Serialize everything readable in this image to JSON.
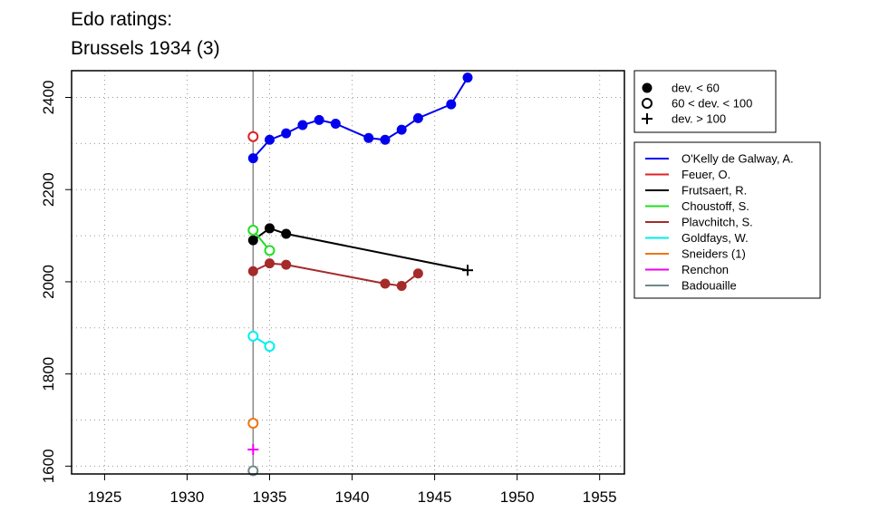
{
  "title": [
    "Edo ratings:",
    "Brussels 1934 (3)"
  ],
  "chart_data": {
    "type": "line",
    "xlim": [
      1923,
      1956.5
    ],
    "ylim": [
      1583,
      2458
    ],
    "xticks": [
      1925,
      1930,
      1935,
      1940,
      1945,
      1950,
      1955
    ],
    "yticks": [
      1600,
      1800,
      2000,
      2200,
      2400
    ],
    "grid": true,
    "event_year": 1934,
    "event_line_color": "#888888",
    "marker_legend": [
      {
        "label": "dev. < 60",
        "marker": "filled-circle"
      },
      {
        "label": "60 < dev. < 100",
        "marker": "open-circle"
      },
      {
        "label": "dev. > 100",
        "marker": "plus"
      }
    ],
    "series": [
      {
        "name": "O'Kelly de Galway, A.",
        "color": "#0000ee",
        "points": [
          {
            "x": 1934,
            "y": 2268,
            "m": "filled"
          },
          {
            "x": 1935,
            "y": 2308,
            "m": "filled"
          },
          {
            "x": 1936,
            "y": 2322,
            "m": "filled"
          },
          {
            "x": 1937,
            "y": 2340,
            "m": "filled"
          },
          {
            "x": 1938,
            "y": 2351,
            "m": "filled"
          },
          {
            "x": 1939,
            "y": 2343,
            "m": "filled"
          },
          {
            "x": 1941,
            "y": 2312,
            "m": "filled"
          },
          {
            "x": 1942,
            "y": 2308,
            "m": "filled"
          },
          {
            "x": 1943,
            "y": 2330,
            "m": "filled"
          },
          {
            "x": 1944,
            "y": 2355,
            "m": "filled"
          },
          {
            "x": 1946,
            "y": 2385,
            "m": "filled"
          },
          {
            "x": 1947,
            "y": 2443,
            "m": "filled"
          }
        ]
      },
      {
        "name": "Feuer, O.",
        "color": "#dd2222",
        "points": [
          {
            "x": 1934,
            "y": 2315,
            "m": "open"
          }
        ]
      },
      {
        "name": "Frutsaert, R.",
        "color": "#000000",
        "points": [
          {
            "x": 1934,
            "y": 2090,
            "m": "filled"
          },
          {
            "x": 1935,
            "y": 2116,
            "m": "filled"
          },
          {
            "x": 1936,
            "y": 2104,
            "m": "filled"
          },
          {
            "x": 1947,
            "y": 2025,
            "m": "plus"
          }
        ]
      },
      {
        "name": "Choustoff, S.",
        "color": "#22dd22",
        "points": [
          {
            "x": 1934,
            "y": 2112,
            "m": "open"
          },
          {
            "x": 1935,
            "y": 2068,
            "m": "open"
          }
        ]
      },
      {
        "name": "Plavchitch, S.",
        "color": "#a52a2a",
        "points": [
          {
            "x": 1934,
            "y": 2023,
            "m": "filled"
          },
          {
            "x": 1935,
            "y": 2040,
            "m": "filled"
          },
          {
            "x": 1936,
            "y": 2037,
            "m": "filled"
          },
          {
            "x": 1942,
            "y": 1996,
            "m": "filled"
          },
          {
            "x": 1943,
            "y": 1991,
            "m": "filled"
          },
          {
            "x": 1944,
            "y": 2018,
            "m": "filled"
          }
        ]
      },
      {
        "name": "Goldfays, W.",
        "color": "#00eeee",
        "points": [
          {
            "x": 1934,
            "y": 1882,
            "m": "open"
          },
          {
            "x": 1935,
            "y": 1860,
            "m": "open"
          }
        ]
      },
      {
        "name": "Sneiders (1)",
        "color": "#ee7711",
        "points": [
          {
            "x": 1934,
            "y": 1693,
            "m": "open"
          }
        ]
      },
      {
        "name": "Renchon",
        "color": "#ee00ee",
        "points": [
          {
            "x": 1934,
            "y": 1636,
            "m": "plus"
          }
        ]
      },
      {
        "name": "Badouaille",
        "color": "#708888",
        "points": [
          {
            "x": 1934,
            "y": 1590,
            "m": "open"
          }
        ]
      }
    ]
  }
}
